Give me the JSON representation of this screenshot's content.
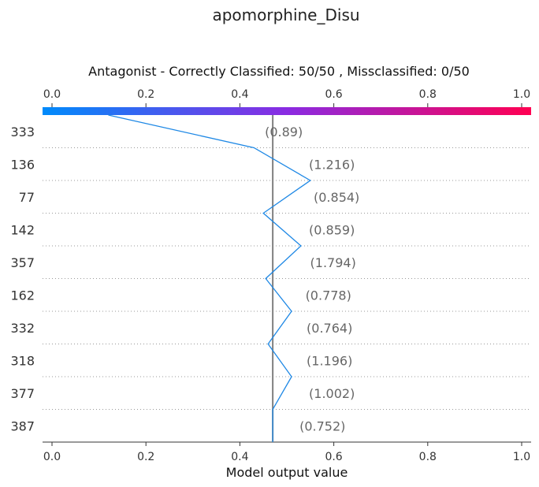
{
  "chart_data": {
    "type": "line",
    "title": "apomorphine_Disu",
    "subtitle": "Antagonist - Correctly Classified: 50/50 , Missclassified: 0/50",
    "xlabel": "Model output value",
    "xlim": [
      -0.02,
      1.02
    ],
    "xticks": [
      0.0,
      0.2,
      0.4,
      0.6,
      0.8,
      1.0
    ],
    "xtick_labels": [
      "0.0",
      "0.2",
      "0.4",
      "0.6",
      "0.8",
      "1.0"
    ],
    "base_value": 0.47,
    "colorbar": {
      "from": "#008bfb",
      "mid": "#8a2be2",
      "to": "#ff0052"
    },
    "line_color": "#1e88e5",
    "rows": [
      {
        "feature": "333",
        "value_label": "(0.89)",
        "x": 0.12
      },
      {
        "feature": "136",
        "value_label": "(1.216)",
        "x": 0.43
      },
      {
        "feature": "77",
        "value_label": "(0.854)",
        "x": 0.55
      },
      {
        "feature": "142",
        "value_label": "(0.859)",
        "x": 0.45
      },
      {
        "feature": "357",
        "value_label": "(1.794)",
        "x": 0.53
      },
      {
        "feature": "162",
        "value_label": "(0.778)",
        "x": 0.455
      },
      {
        "feature": "332",
        "value_label": "(0.764)",
        "x": 0.51
      },
      {
        "feature": "318",
        "value_label": "(1.196)",
        "x": 0.46
      },
      {
        "feature": "377",
        "value_label": "(1.002)",
        "x": 0.51
      },
      {
        "feature": "387",
        "value_label": "(0.752)",
        "x": 0.47
      }
    ]
  }
}
